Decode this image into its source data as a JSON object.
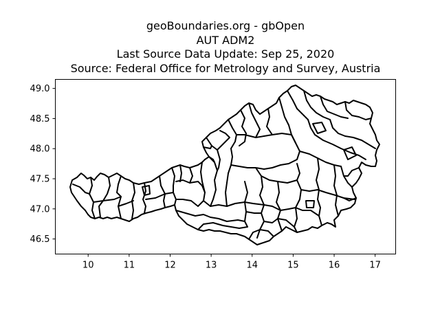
{
  "title": {
    "line1": "geoBoundaries.org - gbOpen",
    "line2": "AUT ADM2",
    "line3": "Last Source Data Update: Sep 25, 2020",
    "line4": "Source: Federal Office for Metrology and Survey, Austria"
  },
  "axes": {
    "x_ticks": [
      "10",
      "11",
      "12",
      "13",
      "14",
      "15",
      "16",
      "17"
    ],
    "y_ticks": [
      "49.0",
      "48.5",
      "48.0",
      "47.5",
      "47.0",
      "46.5"
    ],
    "xlim": [
      9.2,
      17.5
    ],
    "ylim": [
      46.25,
      49.15
    ]
  },
  "map": {
    "country": "AUT",
    "level": "ADM2",
    "outline_color": "#000000",
    "fill_color": "#ffffff"
  }
}
